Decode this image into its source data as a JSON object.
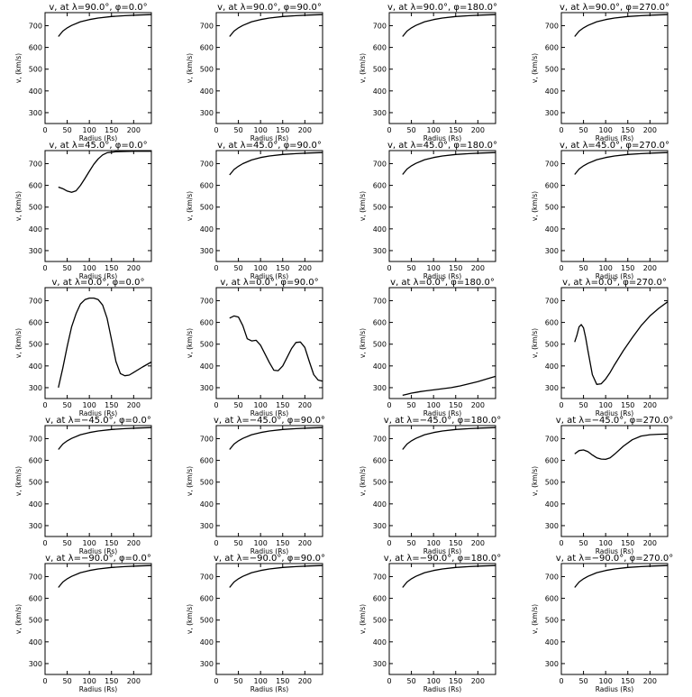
{
  "figure": {
    "xlabel": "Radius (Rs)",
    "ylabel": "v, (km/s)",
    "xlim": [
      0,
      240
    ],
    "ylim": [
      250,
      760
    ],
    "xticks": [
      0,
      50,
      100,
      150,
      200
    ],
    "yticks": [
      300,
      400,
      500,
      600,
      700
    ]
  },
  "chart_data": [
    {
      "type": "line",
      "title": "v, at λ=90.0°, φ=0.0°",
      "x": [
        30,
        40,
        50,
        60,
        80,
        100,
        120,
        150,
        180,
        210,
        240
      ],
      "values": [
        650,
        675,
        690,
        701,
        718,
        728,
        735,
        742,
        746,
        749,
        751
      ]
    },
    {
      "type": "line",
      "title": "v, at λ=90.0°, φ=90.0°",
      "x": [
        30,
        40,
        50,
        60,
        80,
        100,
        120,
        150,
        180,
        210,
        240
      ],
      "values": [
        650,
        675,
        690,
        701,
        718,
        728,
        735,
        742,
        746,
        749,
        751
      ]
    },
    {
      "type": "line",
      "title": "v, at λ=90.0°, φ=180.0°",
      "x": [
        30,
        40,
        50,
        60,
        80,
        100,
        120,
        150,
        180,
        210,
        240
      ],
      "values": [
        650,
        675,
        690,
        701,
        718,
        728,
        735,
        742,
        746,
        749,
        751
      ]
    },
    {
      "type": "line",
      "title": "v, at λ=90.0°, φ=270.0°",
      "x": [
        30,
        40,
        50,
        60,
        80,
        100,
        120,
        150,
        180,
        210,
        240
      ],
      "values": [
        650,
        675,
        690,
        701,
        718,
        728,
        735,
        742,
        746,
        749,
        751
      ]
    },
    {
      "type": "line",
      "title": "v, at λ=45.0°, φ=0.0°",
      "x": [
        30,
        40,
        50,
        60,
        70,
        80,
        90,
        100,
        110,
        120,
        130,
        140,
        160,
        180,
        200,
        240
      ],
      "values": [
        592,
        585,
        574,
        568,
        575,
        600,
        632,
        665,
        697,
        722,
        740,
        750,
        755,
        756,
        757,
        757
      ]
    },
    {
      "type": "line",
      "title": "v, at λ=45.0°, φ=90.0°",
      "x": [
        30,
        40,
        50,
        60,
        80,
        100,
        120,
        150,
        180,
        210,
        240
      ],
      "values": [
        648,
        673,
        688,
        700,
        717,
        728,
        735,
        742,
        746,
        749,
        751
      ]
    },
    {
      "type": "line",
      "title": "v, at λ=45.0°, φ=180.0°",
      "x": [
        30,
        40,
        50,
        60,
        80,
        100,
        120,
        150,
        180,
        210,
        240
      ],
      "values": [
        650,
        675,
        690,
        701,
        718,
        728,
        735,
        742,
        746,
        749,
        751
      ]
    },
    {
      "type": "line",
      "title": "v, at λ=45.0°, φ=270.0°",
      "x": [
        30,
        40,
        50,
        60,
        80,
        100,
        120,
        150,
        180,
        210,
        240
      ],
      "values": [
        650,
        675,
        690,
        701,
        718,
        728,
        735,
        742,
        746,
        749,
        751
      ]
    },
    {
      "type": "line",
      "title": "v, at λ=0.0°, φ=0.0°",
      "x": [
        30,
        40,
        50,
        60,
        70,
        80,
        90,
        100,
        110,
        120,
        130,
        140,
        150,
        160,
        170,
        180,
        190,
        200,
        220,
        240
      ],
      "values": [
        300,
        390,
        490,
        580,
        640,
        685,
        705,
        712,
        712,
        705,
        680,
        620,
        520,
        420,
        365,
        355,
        358,
        370,
        395,
        418
      ]
    },
    {
      "type": "line",
      "title": "v, at λ=0.0°, φ=90.0°",
      "x": [
        30,
        40,
        50,
        60,
        70,
        80,
        90,
        100,
        110,
        120,
        130,
        140,
        150,
        160,
        170,
        180,
        190,
        200,
        210,
        220,
        230,
        240
      ],
      "values": [
        620,
        630,
        625,
        585,
        525,
        515,
        518,
        495,
        455,
        415,
        380,
        378,
        400,
        440,
        480,
        508,
        510,
        485,
        420,
        360,
        335,
        330
      ]
    },
    {
      "type": "line",
      "title": "v, at λ=0.0°, φ=180.0°",
      "x": [
        30,
        40,
        50,
        60,
        70,
        80,
        100,
        120,
        140,
        160,
        180,
        200,
        220,
        240
      ],
      "values": [
        265,
        270,
        275,
        278,
        282,
        285,
        290,
        295,
        300,
        308,
        318,
        328,
        340,
        352
      ]
    },
    {
      "type": "line",
      "title": "v, at λ=0.0°, φ=270.0°",
      "x": [
        30,
        35,
        40,
        45,
        50,
        55,
        60,
        70,
        80,
        90,
        100,
        110,
        120,
        140,
        160,
        180,
        200,
        220,
        240
      ],
      "values": [
        510,
        540,
        580,
        590,
        575,
        530,
        470,
        360,
        315,
        318,
        340,
        370,
        405,
        470,
        530,
        585,
        630,
        665,
        695
      ]
    },
    {
      "type": "line",
      "title": "v, at λ=−45.0°, φ=0.0°",
      "x": [
        30,
        40,
        50,
        60,
        80,
        100,
        120,
        150,
        180,
        210,
        240
      ],
      "values": [
        650,
        675,
        690,
        701,
        718,
        728,
        735,
        742,
        746,
        749,
        751
      ]
    },
    {
      "type": "line",
      "title": "v, at λ=−45.0°, φ=90.0°",
      "x": [
        30,
        40,
        50,
        60,
        80,
        100,
        120,
        150,
        180,
        210,
        240
      ],
      "values": [
        650,
        675,
        690,
        701,
        718,
        728,
        735,
        742,
        746,
        749,
        751
      ]
    },
    {
      "type": "line",
      "title": "v, at λ=−45.0°, φ=180.0°",
      "x": [
        30,
        40,
        50,
        60,
        80,
        100,
        120,
        150,
        180,
        210,
        240
      ],
      "values": [
        650,
        675,
        690,
        701,
        718,
        728,
        735,
        742,
        746,
        749,
        751
      ]
    },
    {
      "type": "line",
      "title": "v, at λ=−45.0°, φ=270.0°",
      "x": [
        30,
        40,
        50,
        60,
        70,
        80,
        90,
        100,
        110,
        120,
        140,
        160,
        180,
        200,
        220,
        240
      ],
      "values": [
        630,
        645,
        648,
        640,
        625,
        612,
        606,
        605,
        612,
        628,
        665,
        695,
        712,
        718,
        720,
        721
      ]
    },
    {
      "type": "line",
      "title": "v, at λ=−90.0°, φ=0.0°",
      "x": [
        30,
        40,
        50,
        60,
        80,
        100,
        120,
        150,
        180,
        210,
        240
      ],
      "values": [
        650,
        675,
        690,
        701,
        718,
        728,
        735,
        742,
        746,
        749,
        751
      ]
    },
    {
      "type": "line",
      "title": "v, at λ=−90.0°, φ=90.0°",
      "x": [
        30,
        40,
        50,
        60,
        80,
        100,
        120,
        150,
        180,
        210,
        240
      ],
      "values": [
        650,
        675,
        690,
        701,
        718,
        728,
        735,
        742,
        746,
        749,
        751
      ]
    },
    {
      "type": "line",
      "title": "v, at λ=−90.0°, φ=180.0°",
      "x": [
        30,
        40,
        50,
        60,
        80,
        100,
        120,
        150,
        180,
        210,
        240
      ],
      "values": [
        650,
        675,
        690,
        701,
        718,
        728,
        735,
        742,
        746,
        749,
        751
      ]
    },
    {
      "type": "line",
      "title": "v, at λ=−90.0°, φ=270.0°",
      "x": [
        30,
        40,
        50,
        60,
        80,
        100,
        120,
        150,
        180,
        210,
        240
      ],
      "values": [
        650,
        675,
        690,
        701,
        718,
        728,
        735,
        742,
        746,
        749,
        751
      ]
    }
  ]
}
